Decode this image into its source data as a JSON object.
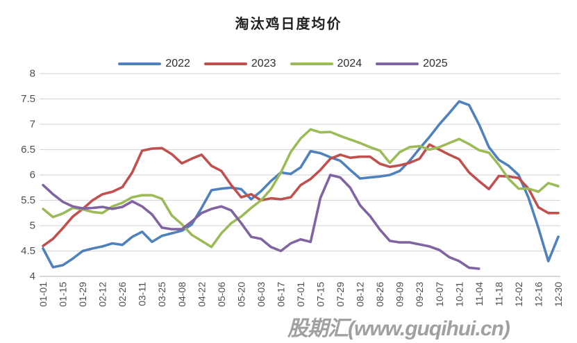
{
  "page": {
    "background": "#FFFFFF"
  },
  "header": {
    "title": "淘汰鸡日度均价"
  },
  "legend": {
    "items": [
      {
        "label": "2022",
        "color": "#4F81BD"
      },
      {
        "label": "2023",
        "color": "#C0504D"
      },
      {
        "label": "2024",
        "color": "#9BBB59"
      },
      {
        "label": "2025",
        "color": "#8064A2"
      }
    ]
  },
  "watermark": {
    "text": "股期汇(www.guqihui.cn)",
    "color": "#8F8F8F"
  },
  "chart_data": {
    "type": "line",
    "title": "淘汰鸡日度均价",
    "xlabel": "",
    "ylabel": "",
    "ylim": [
      4,
      8
    ],
    "y_ticks": [
      8,
      7.5,
      7,
      6.5,
      6,
      5.5,
      5,
      4.5,
      4
    ],
    "grid": true,
    "legend_position": "top",
    "axis_label_color": "#4d4d4d",
    "gridline_color": "#D9D9D9",
    "axis_line_color": "#BFBFBF",
    "x": [
      "01-01",
      "01-08",
      "01-15",
      "01-22",
      "01-29",
      "02-05",
      "02-12",
      "02-19",
      "02-26",
      "03-05",
      "03-12",
      "03-19",
      "03-26",
      "04-02",
      "04-09",
      "04-16",
      "04-23",
      "04-30",
      "05-07",
      "05-14",
      "05-21",
      "05-28",
      "06-04",
      "06-11",
      "06-18",
      "06-25",
      "07-02",
      "07-09",
      "07-16",
      "07-23",
      "07-30",
      "08-06",
      "08-13",
      "08-20",
      "08-27",
      "09-03",
      "09-10",
      "09-17",
      "09-24",
      "10-01",
      "10-08",
      "10-15",
      "10-22",
      "10-29",
      "11-05",
      "11-12",
      "11-19",
      "11-26",
      "12-03",
      "12-10",
      "12-17",
      "12-24",
      "12-30"
    ],
    "x_tick_labels": [
      "01-01",
      "01-15",
      "01-29",
      "02-12",
      "02-26",
      "03-11",
      "03-25",
      "04-08",
      "04-22",
      "05-06",
      "05-20",
      "06-03",
      "06-17",
      "07-01",
      "07-15",
      "07-29",
      "08-12",
      "08-26",
      "09-09",
      "09-23",
      "10-07",
      "10-21",
      "11-04",
      "11-18",
      "12-02",
      "12-16",
      "12-30"
    ],
    "series": [
      {
        "name": "2022",
        "color": "#4F81BD",
        "values": [
          4.55,
          4.18,
          4.22,
          4.35,
          4.5,
          4.55,
          4.59,
          4.65,
          4.62,
          4.78,
          4.88,
          4.68,
          4.8,
          4.85,
          4.9,
          5.02,
          5.35,
          5.7,
          5.73,
          5.75,
          5.72,
          5.52,
          5.68,
          5.88,
          6.05,
          6.02,
          6.15,
          6.47,
          6.43,
          6.35,
          6.28,
          6.1,
          5.93,
          5.95,
          5.97,
          6.0,
          6.08,
          6.28,
          6.52,
          6.75,
          7.0,
          7.22,
          7.45,
          7.38,
          7.0,
          6.55,
          6.3,
          6.18,
          6.0,
          5.55,
          4.95,
          4.3,
          4.78
        ]
      },
      {
        "name": "2023",
        "color": "#C0504D",
        "values": [
          4.6,
          4.74,
          4.95,
          5.18,
          5.33,
          5.5,
          5.62,
          5.67,
          5.76,
          6.05,
          6.48,
          6.52,
          6.53,
          6.41,
          6.23,
          6.32,
          6.4,
          6.18,
          6.08,
          5.8,
          5.56,
          5.62,
          5.5,
          5.54,
          5.52,
          5.56,
          5.8,
          5.92,
          6.1,
          6.32,
          6.4,
          6.34,
          6.36,
          6.36,
          6.22,
          6.16,
          6.19,
          6.24,
          6.32,
          6.6,
          6.5,
          6.4,
          6.31,
          6.05,
          5.88,
          5.72,
          5.98,
          5.97,
          5.94,
          5.73,
          5.36,
          5.25,
          5.25
        ]
      },
      {
        "name": "2024",
        "color": "#9BBB59",
        "values": [
          5.33,
          5.17,
          5.24,
          5.35,
          5.32,
          5.27,
          5.25,
          5.38,
          5.45,
          5.56,
          5.6,
          5.6,
          5.53,
          5.2,
          5.03,
          4.82,
          4.7,
          4.58,
          4.85,
          5.05,
          5.18,
          5.35,
          5.5,
          5.72,
          6.05,
          6.45,
          6.72,
          6.9,
          6.84,
          6.85,
          6.77,
          6.7,
          6.63,
          6.55,
          6.48,
          6.24,
          6.45,
          6.55,
          6.57,
          6.5,
          6.55,
          6.63,
          6.71,
          6.61,
          6.49,
          6.44,
          6.2,
          5.92,
          5.73,
          5.73,
          5.67,
          5.84,
          5.78
        ]
      },
      {
        "name": "2025",
        "color": "#8064A2",
        "values": [
          5.8,
          5.62,
          5.47,
          5.38,
          5.34,
          5.35,
          5.37,
          5.33,
          5.37,
          5.48,
          5.38,
          5.22,
          4.96,
          4.93,
          4.93,
          5.08,
          5.25,
          5.33,
          5.38,
          5.3,
          5.05,
          4.78,
          4.74,
          4.58,
          4.5,
          4.65,
          4.73,
          4.68,
          5.55,
          6.0,
          5.95,
          5.75,
          5.4,
          5.19,
          4.92,
          4.7,
          4.67,
          4.67,
          4.63,
          4.59,
          4.52,
          4.38,
          4.3,
          4.17,
          4.15,
          null,
          null,
          null,
          null,
          null,
          null,
          null,
          null
        ]
      }
    ]
  }
}
